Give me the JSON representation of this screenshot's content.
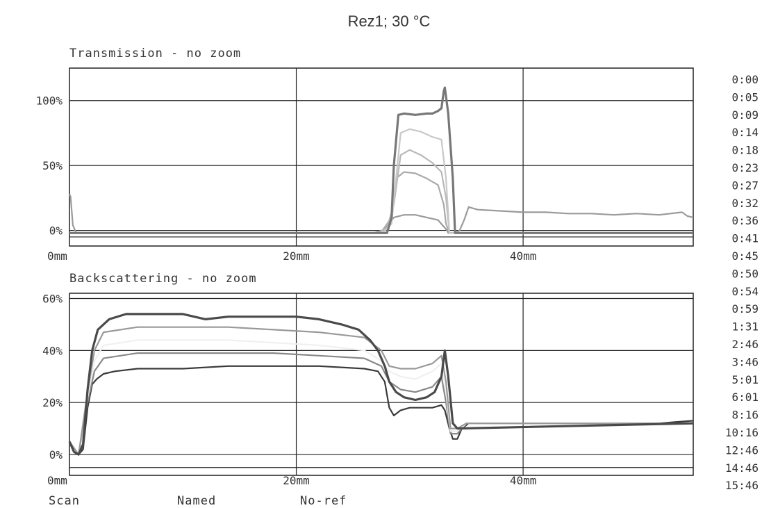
{
  "chart_data": {
    "title": "Rez1; 30 °C",
    "type": "line",
    "panels": [
      {
        "id": "transmission",
        "title": "Transmission - no zoom",
        "ylim": [
          -12,
          125
        ],
        "xlim": [
          0,
          55
        ],
        "y_ticks": [
          {
            "v": 0,
            "label": "0%"
          },
          {
            "v": 50,
            "label": "50%"
          },
          {
            "v": 100,
            "label": "100%"
          }
        ],
        "x_ticks": [
          {
            "v": 0,
            "label": "0mm"
          },
          {
            "v": 20,
            "label": "20mm"
          },
          {
            "v": 40,
            "label": "40mm"
          }
        ],
        "gridlines_y": [
          -5,
          0,
          50,
          100
        ],
        "series_colors": [
          "#9a9a9a",
          "#aaaaaa",
          "#b8b8b8",
          "#c8c8c8",
          "#777777"
        ],
        "series": [
          {
            "name": "0:00",
            "x": [
              0,
              0.1,
              0.3,
              0.6,
              10,
              20,
              26.2,
              27,
              27.4,
              28,
              28.6,
              29.5,
              30.5,
              31.5,
              32.5,
              33.0,
              33.3,
              33.4,
              33.6,
              34.0,
              34.4,
              34.8,
              35.2,
              36,
              38,
              40,
              42,
              44,
              46,
              48,
              50,
              52,
              54,
              54.5,
              55
            ],
            "y": [
              28,
              26,
              4,
              -2,
              -2,
              -2,
              -2,
              -2,
              -1,
              3,
              10,
              12,
              12,
              10,
              8,
              3,
              0,
              -2,
              -2,
              -2,
              0,
              8,
              18,
              16,
              15,
              14,
              14,
              13,
              13,
              12,
              13,
              12,
              14,
              11,
              10
            ]
          },
          {
            "name": "0:05",
            "x": [
              0,
              26.8,
              27.6,
              28.4,
              28.8,
              29.5,
              30.5,
              31.5,
              32.5,
              33.0,
              33.2,
              33.5,
              55
            ],
            "y": [
              -2,
              -2,
              0,
              10,
              40,
              45,
              44,
              40,
              35,
              20,
              5,
              -2,
              -2
            ]
          },
          {
            "name": "0:09",
            "x": [
              0,
              27.2,
              28.0,
              28.6,
              29.2,
              30.0,
              31.0,
              32.0,
              32.8,
              33.2,
              33.5,
              55
            ],
            "y": [
              -2,
              -2,
              2,
              20,
              58,
              62,
              58,
              52,
              45,
              25,
              -2,
              -2
            ]
          },
          {
            "name": "0:14",
            "x": [
              0,
              27.6,
              28.4,
              28.8,
              29.2,
              30.0,
              31.0,
              32.0,
              32.8,
              33.2,
              33.5,
              55
            ],
            "y": [
              -2,
              -2,
              5,
              40,
              75,
              78,
              76,
              72,
              70,
              40,
              -2,
              -2
            ]
          },
          {
            "name": "15:46",
            "x": [
              0,
              28.0,
              28.4,
              28.6,
              29.0,
              29.5,
              30.5,
              31.5,
              32.0,
              32.5,
              32.8,
              33.0,
              33.1,
              33.4,
              33.8,
              34.0,
              55
            ],
            "y": [
              -2,
              -2,
              10,
              50,
              89,
              90,
              89,
              90,
              90,
              92,
              94,
              107,
              110,
              90,
              40,
              -2,
              -2
            ]
          }
        ]
      },
      {
        "id": "backscattering",
        "title": "Backscattering - no zoom",
        "ylim": [
          -8,
          62
        ],
        "xlim": [
          0,
          55
        ],
        "y_ticks": [
          {
            "v": 0,
            "label": "0%"
          },
          {
            "v": 20,
            "label": "20%"
          },
          {
            "v": 40,
            "label": "40%"
          },
          {
            "v": 60,
            "label": "60%"
          }
        ],
        "x_ticks": [
          {
            "v": 0,
            "label": "0mm"
          },
          {
            "v": 20,
            "label": "20mm"
          },
          {
            "v": 40,
            "label": "40mm"
          }
        ],
        "gridlines_y": [
          -5,
          0,
          20,
          40,
          60
        ],
        "series_colors": [
          "#3a3a3a",
          "#888888",
          "#f0f0f0",
          "#999999",
          "#4a4a4a"
        ],
        "series": [
          {
            "name": "0:00",
            "x": [
              0,
              0.4,
              0.8,
              1.2,
              1.6,
              2.0,
              2.4,
              3,
              4,
              6,
              10,
              14,
              18,
              22,
              26,
              27.2,
              27.8,
              28.2,
              28.6,
              29.2,
              30,
              31,
              32,
              32.8,
              33.1,
              33.5,
              33.8,
              34.2,
              34.6,
              35.2,
              36,
              38,
              40,
              44,
              48,
              52,
              55
            ],
            "y": [
              5,
              1,
              0,
              2,
              18,
              27,
              29,
              31,
              32,
              33,
              33,
              34,
              34,
              34,
              33,
              32,
              28,
              18,
              15,
              17,
              18,
              18,
              18,
              19,
              17,
              10,
              6,
              6,
              10,
              12,
              12,
              12,
              12,
              12,
              12,
              12,
              13
            ]
          },
          {
            "name": "0:05",
            "x": [
              0,
              0.8,
              1.6,
              2.2,
              3,
              6,
              10,
              14,
              18,
              22,
              26,
              27.5,
              28.2,
              29.2,
              30.5,
              32,
              32.8,
              33.2,
              33.6,
              34.2,
              35,
              55
            ],
            "y": [
              5,
              0,
              20,
              32,
              37,
              39,
              39,
              39,
              39,
              38,
              37,
              34,
              28,
              25,
              24,
              26,
              30,
              20,
              8,
              8,
              12,
              12
            ]
          },
          {
            "name": "0:09",
            "x": [
              0,
              0.8,
              1.6,
              2.2,
              3,
              6,
              10,
              14,
              18,
              22,
              26,
              27.5,
              28.2,
              29.2,
              30.5,
              32,
              32.8,
              33.2,
              33.6,
              34.2,
              35,
              55
            ],
            "y": [
              5,
              0,
              22,
              36,
              42,
              44,
              44,
              44,
              43,
              42,
              40,
              36,
              32,
              30,
              29,
              32,
              35,
              24,
              9,
              9,
              12,
              12
            ]
          },
          {
            "name": "0:14",
            "x": [
              0,
              0.8,
              1.6,
              2.2,
              3,
              6,
              10,
              14,
              18,
              22,
              26,
              27.5,
              28.2,
              29.2,
              30.5,
              32,
              32.8,
              33.2,
              33.6,
              34.2,
              35,
              55
            ],
            "y": [
              5,
              0,
              24,
              40,
              47,
              49,
              49,
              49,
              48,
              47,
              45,
              40,
              34,
              33,
              33,
              35,
              38,
              28,
              10,
              10,
              12,
              12
            ]
          },
          {
            "name": "15:46",
            "x": [
              0,
              0.4,
              0.8,
              1.2,
              1.6,
              2.0,
              2.5,
              3.5,
              5,
              7,
              10,
              12,
              14,
              16,
              18,
              20,
              22,
              24,
              25.5,
              26.5,
              27.2,
              27.8,
              28.2,
              28.8,
              29.5,
              30.5,
              31.5,
              32.2,
              32.8,
              33.1,
              33.4,
              33.8,
              34.2,
              55
            ],
            "y": [
              5,
              1,
              0,
              4,
              25,
              40,
              48,
              52,
              54,
              54,
              54,
              52,
              53,
              53,
              53,
              53,
              52,
              50,
              48,
              44,
              40,
              34,
              28,
              24,
              22,
              21,
              22,
              24,
              30,
              40,
              30,
              12,
              10,
              12
            ]
          }
        ]
      }
    ],
    "legend": {
      "placement": "right",
      "labels": [
        "0:00",
        "0:05",
        "0:09",
        "0:14",
        "0:18",
        "0:23",
        "0:27",
        "0:32",
        "0:36",
        "0:41",
        "0:45",
        "0:50",
        "0:54",
        "0:59",
        "1:31",
        "2:46",
        "3:46",
        "5:01",
        "6:01",
        "8:16",
        "10:16",
        "12:46",
        "14:46",
        "15:46"
      ]
    },
    "footer": [
      "Scan",
      "Named",
      "No-ref"
    ]
  }
}
